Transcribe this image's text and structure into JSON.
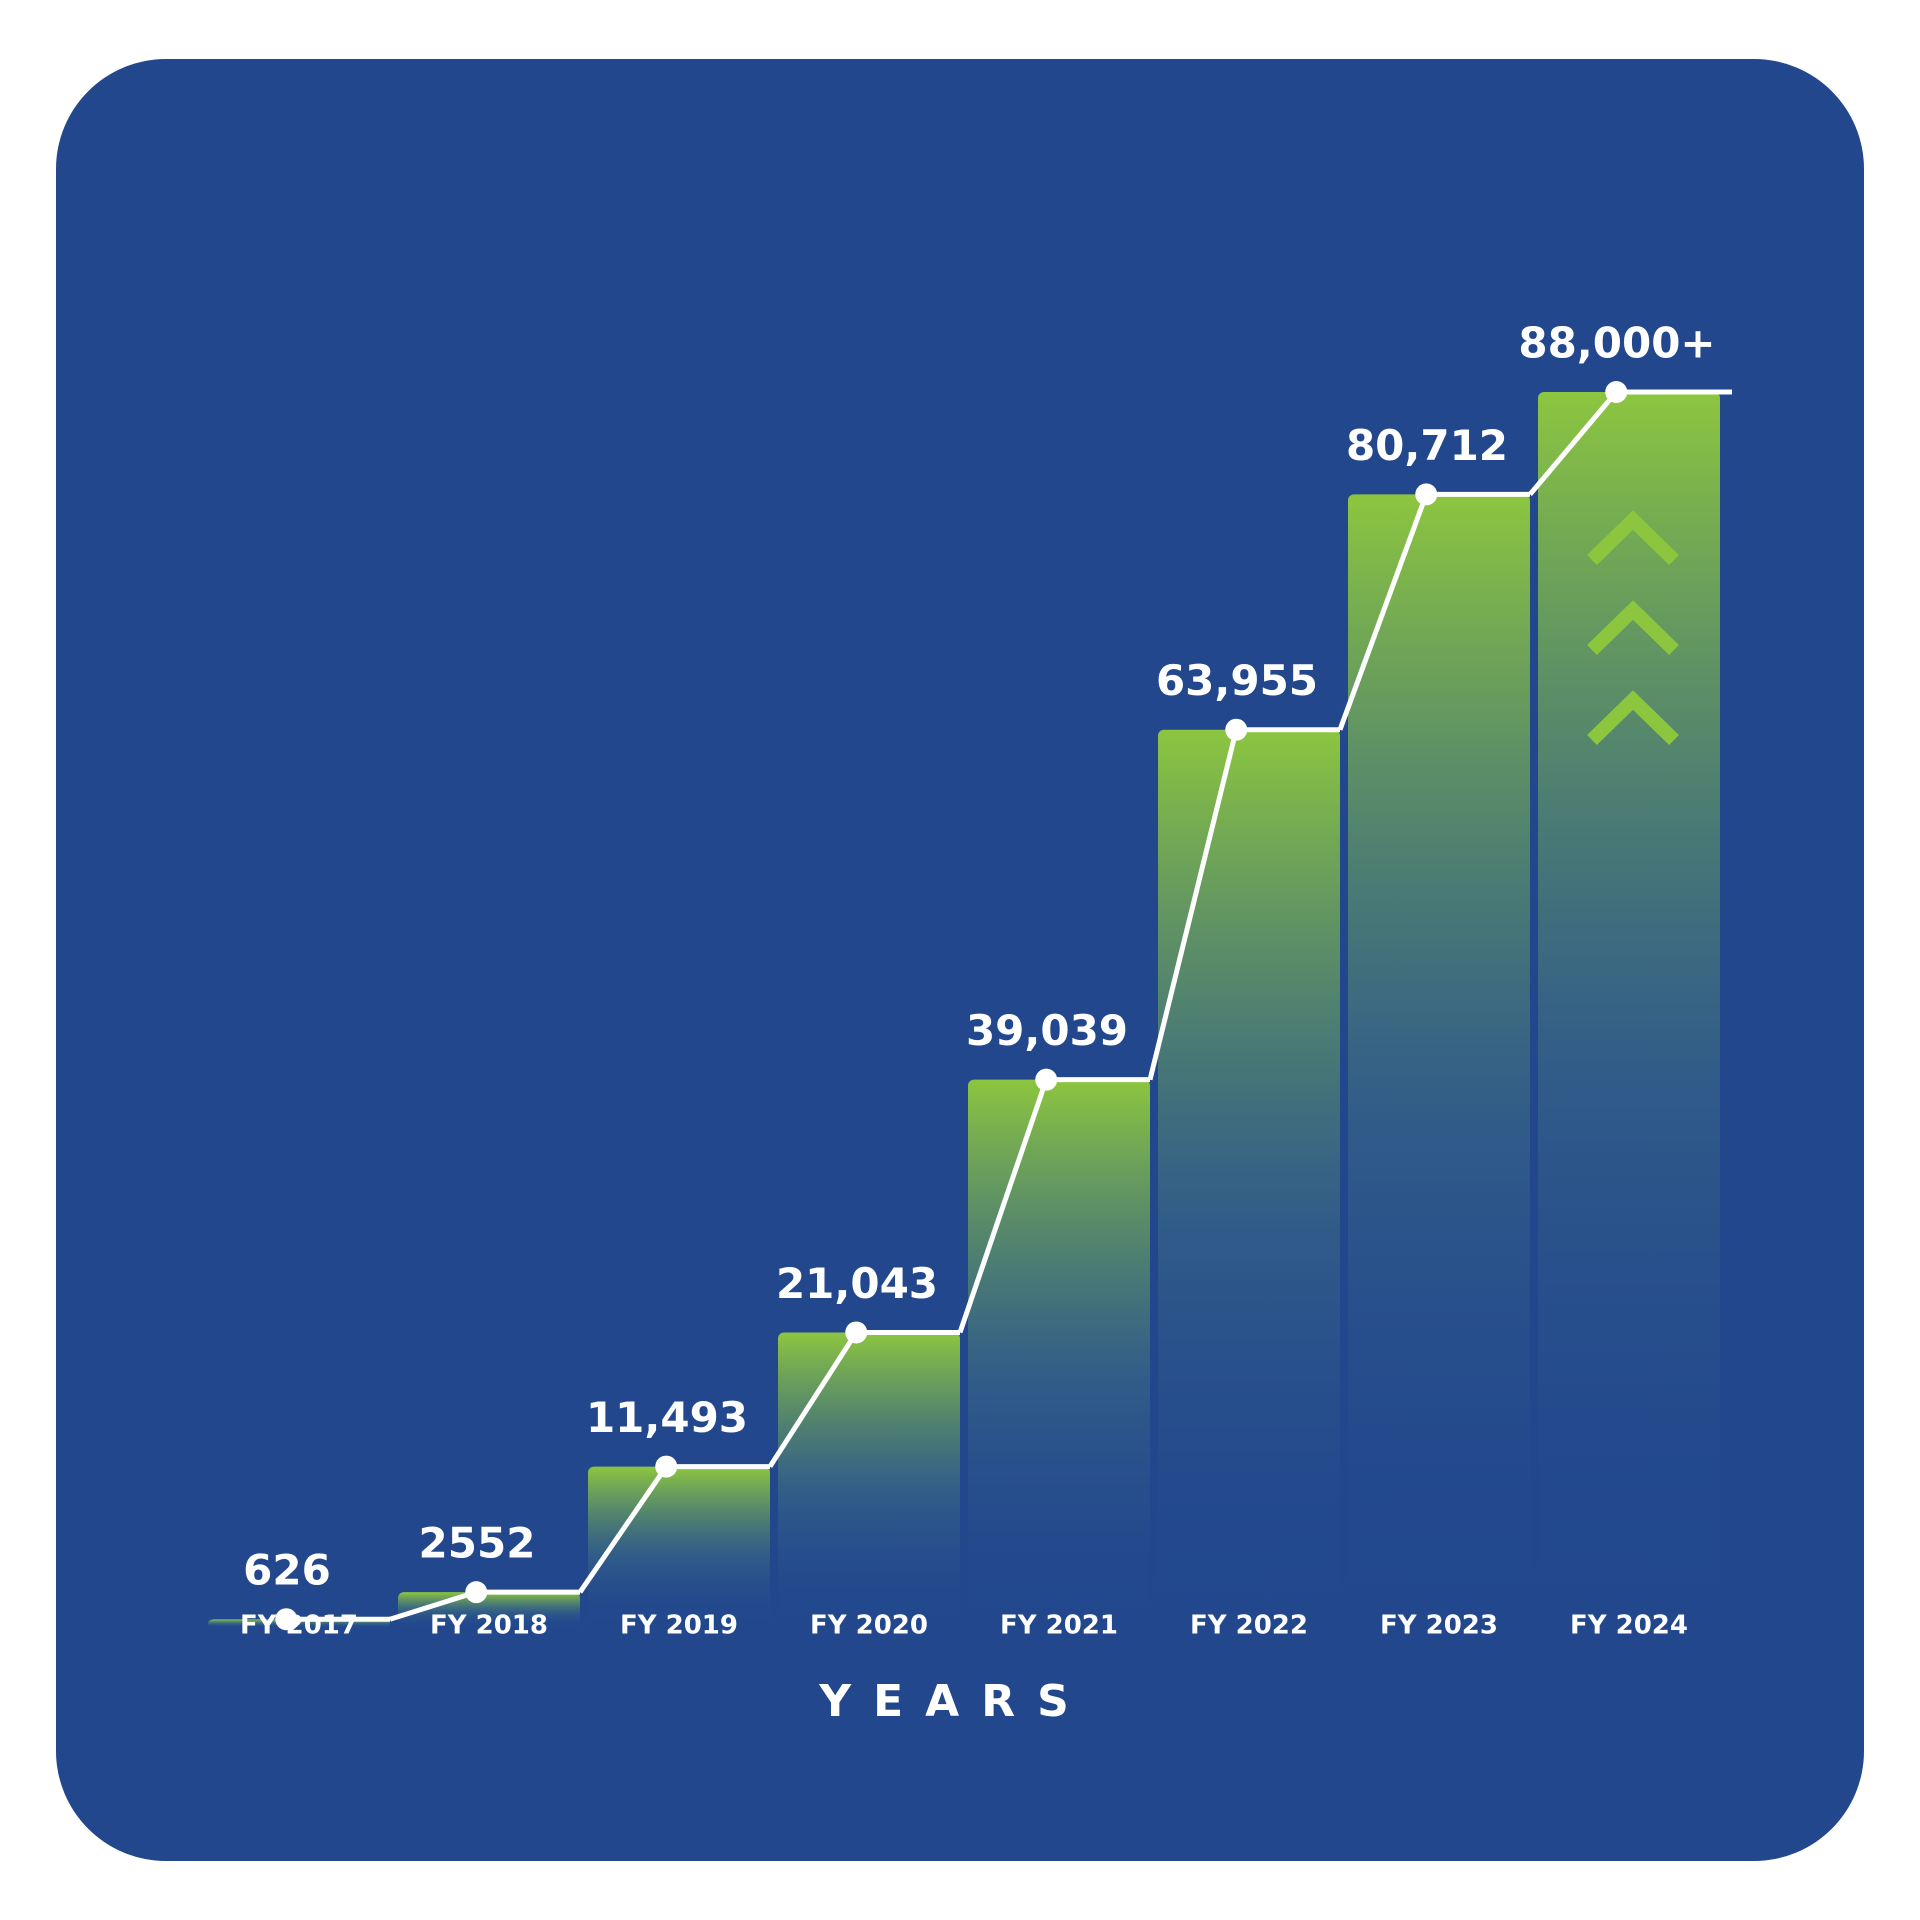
{
  "chart_data": {
    "type": "bar",
    "categories": [
      "FY 2017",
      "FY 2018",
      "FY 2019",
      "FY 2020",
      "FY 2021",
      "FY 2022",
      "FY 2023",
      "FY 2024"
    ],
    "values": [
      626,
      2552,
      11493,
      21043,
      39039,
      63955,
      80712,
      88000
    ],
    "value_labels": [
      "626",
      "2552",
      "11,493",
      "21,043",
      "39,039",
      "63,955",
      "80,712",
      "88,000+"
    ],
    "color": "#8cc63f",
    "line_color": "#ffffff",
    "x_label": "YEARS"
  }
}
